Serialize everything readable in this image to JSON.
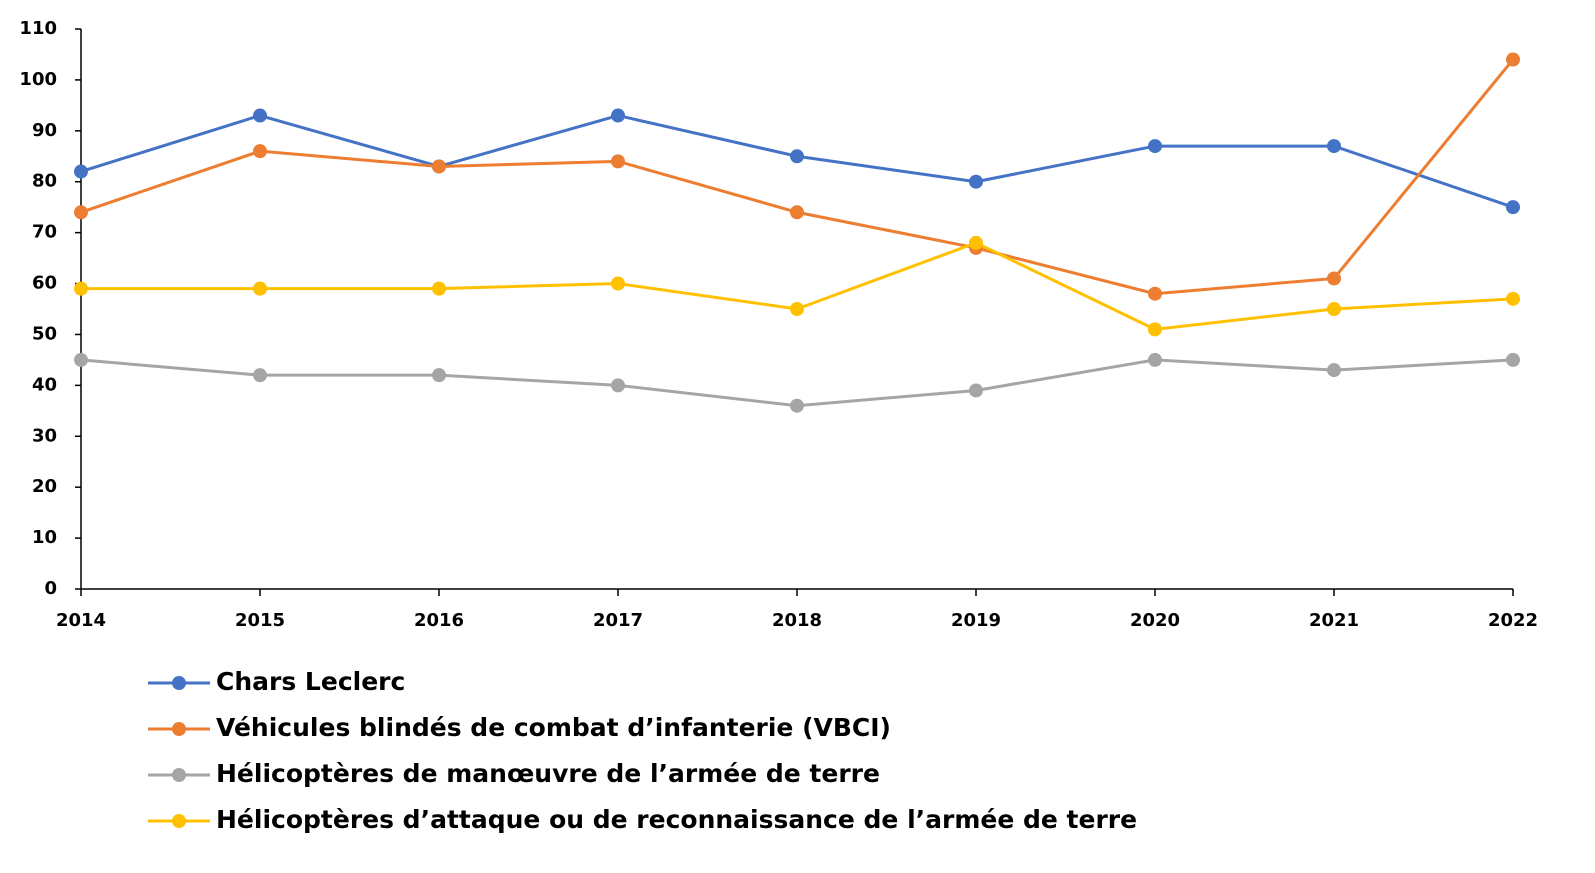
{
  "chart_data": {
    "type": "line",
    "x": [
      2014,
      2015,
      2016,
      2017,
      2018,
      2019,
      2020,
      2021,
      2022
    ],
    "xlim": [
      2014,
      2022
    ],
    "xticks": [
      2014,
      2015,
      2016,
      2017,
      2018,
      2019,
      2020,
      2021,
      2022
    ],
    "ylim": [
      0,
      110
    ],
    "yticks": [
      0,
      10,
      20,
      30,
      40,
      50,
      60,
      70,
      80,
      90,
      100,
      110
    ],
    "grid": false,
    "legend": "bottom",
    "series": [
      {
        "name": "Chars Leclerc",
        "color": "#4472c4",
        "values": [
          82,
          93,
          83,
          93,
          85,
          80,
          87,
          87,
          75
        ]
      },
      {
        "name": "Véhicules blindés de combat d’infanterie (VBCI)",
        "color": "#ed7d31",
        "values": [
          74,
          86,
          83,
          84,
          74,
          67,
          58,
          61,
          104
        ]
      },
      {
        "name": "Hélicoptères de manœuvre de l’armée de terre",
        "color": "#a5a5a5",
        "values": [
          45,
          42,
          42,
          40,
          36,
          39,
          45,
          43,
          45
        ]
      },
      {
        "name": "Hélicoptères d’attaque ou de reconnaissance de l’armée de terre",
        "color": "#ffc000",
        "values": [
          59,
          59,
          59,
          60,
          55,
          68,
          51,
          55,
          57
        ]
      }
    ]
  }
}
